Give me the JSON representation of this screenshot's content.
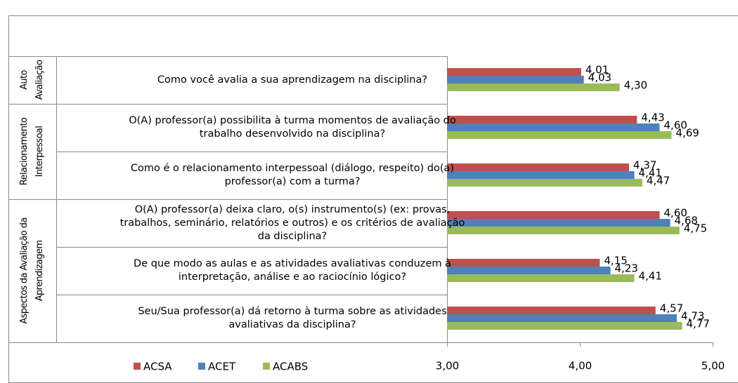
{
  "chart_data": {
    "type": "bar",
    "orientation": "horizontal",
    "groups": [
      {
        "label": "Auto Avaliação",
        "size": 1
      },
      {
        "label": "Relacionamento Interpessoal",
        "size": 2
      },
      {
        "label": "Aspectos da Avaliação da Aprendizagem",
        "size": 3
      }
    ],
    "categories": [
      "Como você avalia a sua aprendizagem na disciplina?",
      "O(A) professor(a) possibilita à turma momentos de avaliação do trabalho desenvolvido na disciplina?",
      "Como é o relacionamento interpessoal (diálogo, respeito) do(a) professor(a) com a turma?",
      "O(A) professor(a) deixa claro, o(s) instrumento(s) (ex: provas, trabalhos, seminário, relatórios e outros)  e os critérios de avaliação da disciplina?",
      "De que modo as aulas e as atividades avaliativas conduzem à interpretação, análise e ao raciocínio lógico?",
      "Seu/Sua professor(a) dá retorno à turma sobre as atividades avaliativas da disciplina?"
    ],
    "series": [
      {
        "name": "ACSA",
        "color": "#c0504d",
        "values": [
          4.01,
          4.43,
          4.37,
          4.6,
          4.15,
          4.57
        ],
        "value_labels": [
          "4,01",
          "4,43",
          "4,37",
          "4,60",
          "4,15",
          "4,57"
        ]
      },
      {
        "name": "ACET",
        "color": "#4f81bd",
        "values": [
          4.03,
          4.6,
          4.41,
          4.68,
          4.23,
          4.73
        ],
        "value_labels": [
          "4,03",
          "4,60",
          "4,41",
          "4,68",
          "4,23",
          "4,73"
        ]
      },
      {
        "name": "ACABS",
        "color": "#9bbb59",
        "values": [
          4.3,
          4.69,
          4.47,
          4.75,
          4.41,
          4.77
        ],
        "value_labels": [
          "4,30",
          "4,69",
          "4,47",
          "4,75",
          "4,41",
          "4,77"
        ]
      }
    ],
    "xlim": [
      3,
      5
    ],
    "xticks": [
      {
        "value": 3,
        "label": "3,00"
      },
      {
        "value": 4,
        "label": "4,00"
      },
      {
        "value": 5,
        "label": "5,00"
      }
    ],
    "legend": "bottom-left"
  }
}
